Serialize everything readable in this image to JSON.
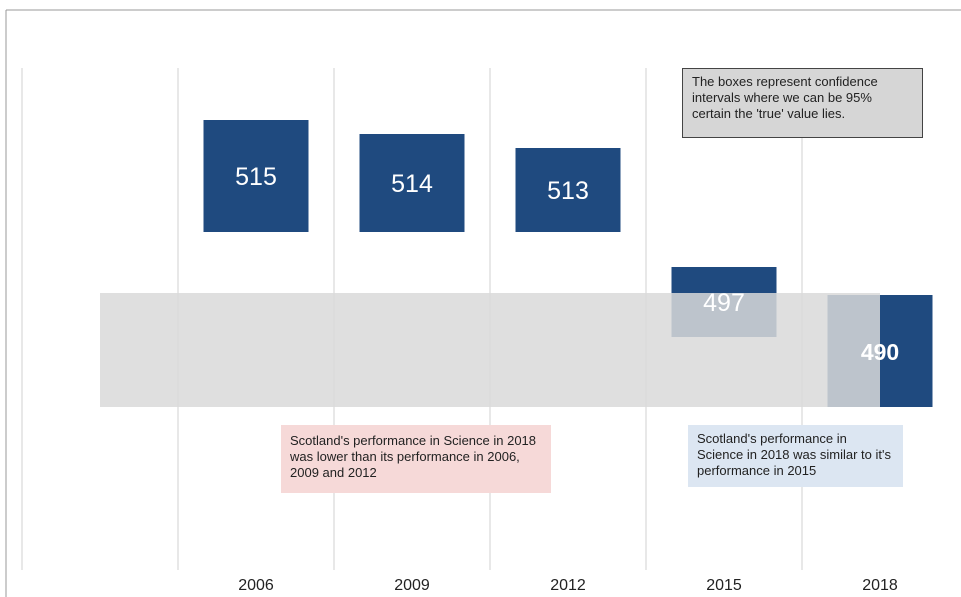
{
  "chart_data": {
    "type": "interval",
    "categories": [
      "2006",
      "2009",
      "2012",
      "2015",
      "2018"
    ],
    "values": [
      515,
      514,
      513,
      497,
      490
    ],
    "errors": [
      8,
      7,
      6,
      5,
      8
    ],
    "color": "#1f4a7f",
    "band_color": "#d9d9d9",
    "annotations": [
      "The boxes represent confidence intervals where we can be 95% certain the 'true' value lies.",
      "Scotland's performance in Science in 2018 was lower than its performance in 2006, 2009 and 2012",
      "Scotland's performance in Science in 2018 was similar to it's performance in 2015"
    ]
  }
}
